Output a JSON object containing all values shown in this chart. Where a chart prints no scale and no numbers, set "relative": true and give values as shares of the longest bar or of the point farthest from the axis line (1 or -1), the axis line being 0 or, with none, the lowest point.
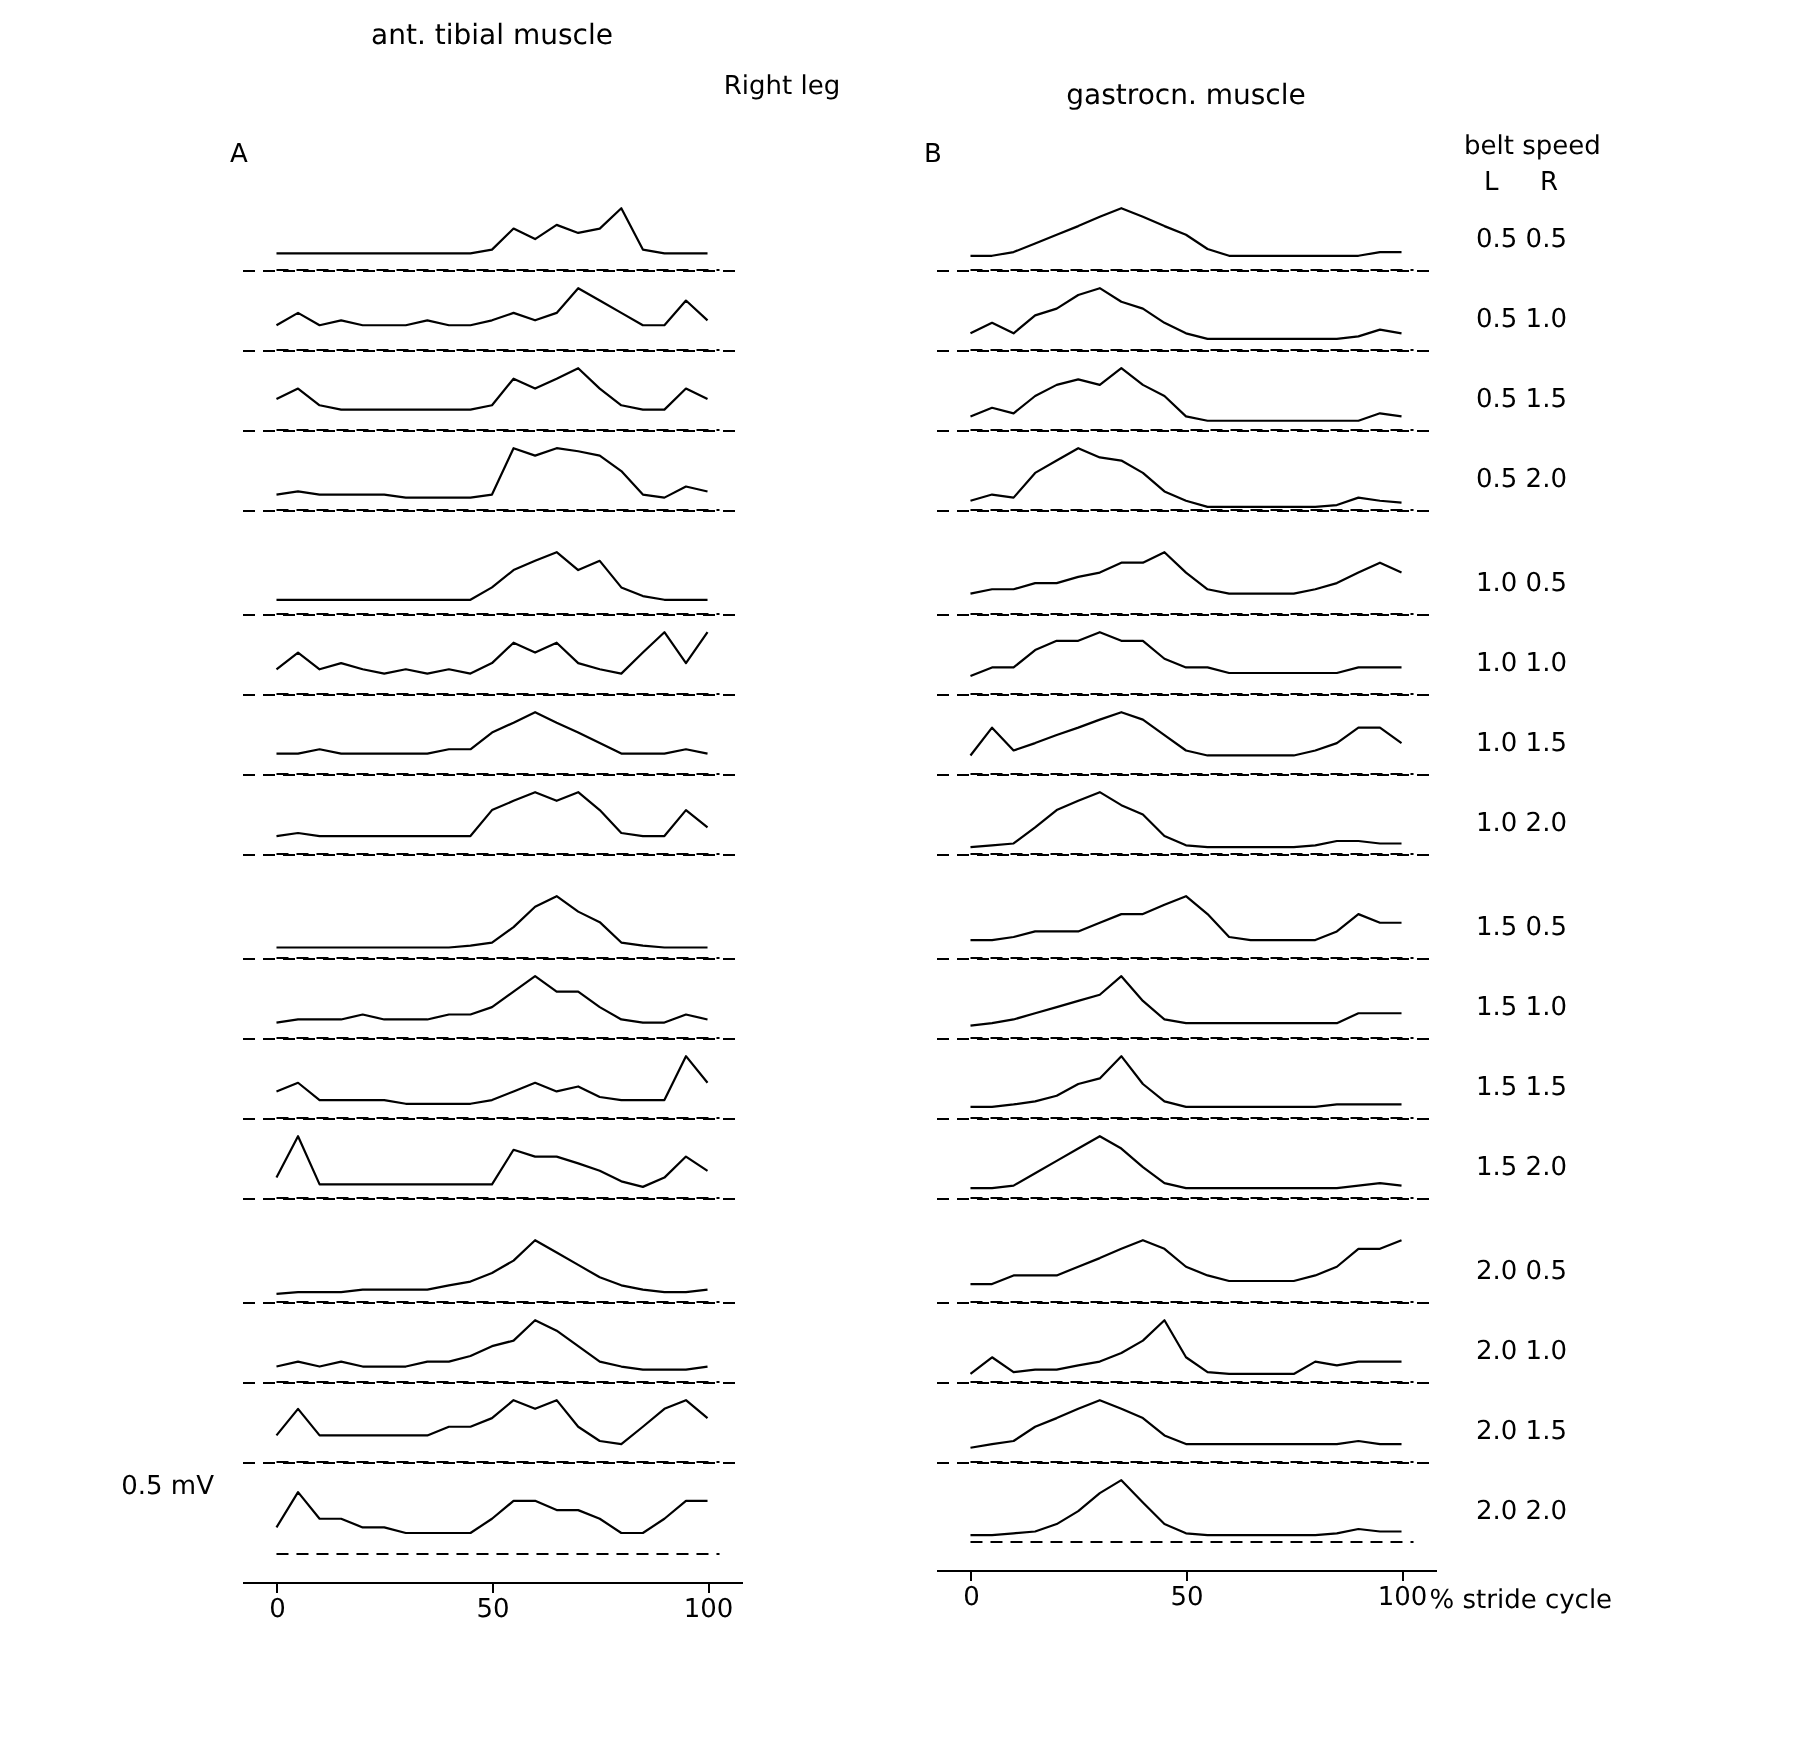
{
  "chart_data": [
    {
      "type": "line",
      "title": "ant. tibial muscle",
      "annotations": [
        "Right leg",
        "A"
      ],
      "relative": true,
      "tick_labels": false,
      "x": [
        0,
        5,
        10,
        15,
        20,
        25,
        30,
        35,
        40,
        45,
        50,
        55,
        60,
        65,
        70,
        75,
        80,
        85,
        90,
        95,
        100
      ],
      "xlim": [
        -8,
        108
      ],
      "xticks": [
        0,
        50,
        100
      ],
      "ref_lines": [
        {
          "axis": "y",
          "value": 0,
          "line_style": "dashed",
          "color": "#000000"
        }
      ],
      "series": [
        {
          "color": "#000000",
          "values": [
            0.27,
            0.27,
            0.27,
            0.27,
            0.27,
            0.27,
            0.27,
            0.27,
            0.27,
            0.27,
            0.33,
            0.67,
            0.5,
            0.73,
            0.6,
            0.67,
            1,
            0.33,
            0.27,
            0.27,
            0.27
          ]
        }
      ]
    },
    {
      "type": "line",
      "title": "gastrocn. muscle",
      "annotations": [
        "B",
        "L",
        "R"
      ],
      "legend_title": "belt speed",
      "relative": true,
      "tick_labels": false,
      "x": [
        0,
        5,
        10,
        15,
        20,
        25,
        30,
        35,
        40,
        45,
        50,
        55,
        60,
        65,
        70,
        75,
        80,
        85,
        90,
        95,
        100
      ],
      "xlim": [
        -8,
        108
      ],
      "xticks": [
        0,
        50,
        100
      ],
      "ref_lines": [
        {
          "axis": "y",
          "value": 0,
          "line_style": "dashed",
          "color": "#000000"
        }
      ],
      "series": [
        {
          "name": "0.5 0.5",
          "color": "#000000",
          "values": [
            0.23,
            0.23,
            0.29,
            0.43,
            0.57,
            0.71,
            0.86,
            1,
            0.86,
            0.71,
            0.57,
            0.34,
            0.23,
            0.23,
            0.23,
            0.23,
            0.23,
            0.23,
            0.23,
            0.29,
            0.29
          ]
        }
      ]
    },
    {
      "type": "line",
      "relative": true,
      "tick_labels": false,
      "x": [
        0,
        5,
        10,
        15,
        20,
        25,
        30,
        35,
        40,
        45,
        50,
        55,
        60,
        65,
        70,
        75,
        80,
        85,
        90,
        95,
        100
      ],
      "xlim": [
        -8,
        108
      ],
      "xticks": [
        0,
        50,
        100
      ],
      "ref_lines": [
        {
          "axis": "y",
          "value": 0,
          "line_style": "dashed",
          "color": "#000000"
        }
      ],
      "series": [
        {
          "color": "#000000",
          "values": [
            0.4,
            0.6,
            0.4,
            0.48,
            0.4,
            0.4,
            0.4,
            0.48,
            0.4,
            0.4,
            0.48,
            0.6,
            0.48,
            0.6,
            1,
            0.8,
            0.6,
            0.4,
            0.4,
            0.8,
            0.48
          ]
        }
      ]
    },
    {
      "type": "line",
      "relative": true,
      "tick_labels": false,
      "x": [
        0,
        5,
        10,
        15,
        20,
        25,
        30,
        35,
        40,
        45,
        50,
        55,
        60,
        65,
        70,
        75,
        80,
        85,
        90,
        95,
        100
      ],
      "xlim": [
        -8,
        108
      ],
      "xticks": [
        0,
        50,
        100
      ],
      "ref_lines": [
        {
          "axis": "y",
          "value": 0,
          "line_style": "dashed",
          "color": "#000000"
        }
      ],
      "series": [
        {
          "name": "0.5 1.0",
          "color": "#000000",
          "values": [
            0.27,
            0.44,
            0.27,
            0.56,
            0.67,
            0.89,
            1,
            0.78,
            0.67,
            0.44,
            0.27,
            0.18,
            0.18,
            0.18,
            0.18,
            0.18,
            0.18,
            0.18,
            0.22,
            0.33,
            0.27
          ]
        }
      ]
    },
    {
      "type": "line",
      "relative": true,
      "tick_labels": false,
      "x": [
        0,
        5,
        10,
        15,
        20,
        25,
        30,
        35,
        40,
        45,
        50,
        55,
        60,
        65,
        70,
        75,
        80,
        85,
        90,
        95,
        100
      ],
      "xlim": [
        -8,
        108
      ],
      "xticks": [
        0,
        50,
        100
      ],
      "ref_lines": [
        {
          "axis": "y",
          "value": 0,
          "line_style": "dashed",
          "color": "#000000"
        }
      ],
      "series": [
        {
          "color": "#000000",
          "values": [
            0.5,
            0.67,
            0.4,
            0.33,
            0.33,
            0.33,
            0.33,
            0.33,
            0.33,
            0.33,
            0.4,
            0.83,
            0.67,
            0.83,
            1,
            0.67,
            0.4,
            0.33,
            0.33,
            0.67,
            0.5
          ]
        }
      ]
    },
    {
      "type": "line",
      "relative": true,
      "tick_labels": false,
      "x": [
        0,
        5,
        10,
        15,
        20,
        25,
        30,
        35,
        40,
        45,
        50,
        55,
        60,
        65,
        70,
        75,
        80,
        85,
        90,
        95,
        100
      ],
      "xlim": [
        -8,
        108
      ],
      "xticks": [
        0,
        50,
        100
      ],
      "ref_lines": [
        {
          "axis": "y",
          "value": 0,
          "line_style": "dashed",
          "color": "#000000"
        }
      ],
      "series": [
        {
          "name": "0.5 1.5",
          "color": "#000000",
          "values": [
            0.22,
            0.36,
            0.27,
            0.55,
            0.73,
            0.82,
            0.73,
            1,
            0.73,
            0.55,
            0.22,
            0.15,
            0.15,
            0.15,
            0.15,
            0.15,
            0.15,
            0.15,
            0.15,
            0.27,
            0.22
          ]
        }
      ]
    },
    {
      "type": "line",
      "relative": true,
      "tick_labels": false,
      "x": [
        0,
        5,
        10,
        15,
        20,
        25,
        30,
        35,
        40,
        45,
        50,
        55,
        60,
        65,
        70,
        75,
        80,
        85,
        90,
        95,
        100
      ],
      "xlim": [
        -8,
        108
      ],
      "xticks": [
        0,
        50,
        100
      ],
      "ref_lines": [
        {
          "axis": "y",
          "value": 0,
          "line_style": "dashed",
          "color": "#000000"
        }
      ],
      "series": [
        {
          "color": "#000000",
          "values": [
            0.25,
            0.3,
            0.25,
            0.25,
            0.25,
            0.25,
            0.2,
            0.2,
            0.2,
            0.2,
            0.25,
            1,
            0.88,
            1,
            0.95,
            0.88,
            0.63,
            0.25,
            0.2,
            0.38,
            0.3
          ]
        }
      ]
    },
    {
      "type": "line",
      "relative": true,
      "tick_labels": false,
      "x": [
        0,
        5,
        10,
        15,
        20,
        25,
        30,
        35,
        40,
        45,
        50,
        55,
        60,
        65,
        70,
        75,
        80,
        85,
        90,
        95,
        100
      ],
      "xlim": [
        -8,
        108
      ],
      "xticks": [
        0,
        50,
        100
      ],
      "ref_lines": [
        {
          "axis": "y",
          "value": 0,
          "line_style": "dashed",
          "color": "#000000"
        }
      ],
      "series": [
        {
          "name": "0.5 2.0",
          "color": "#000000",
          "values": [
            0.15,
            0.25,
            0.2,
            0.6,
            0.8,
            1.0,
            0.85,
            0.8,
            0.6,
            0.3,
            0.15,
            0.05,
            0.05,
            0.05,
            0.05,
            0.05,
            0.05,
            0.08,
            0.2,
            0.15,
            0.12
          ]
        }
      ]
    },
    {
      "type": "line",
      "relative": true,
      "tick_labels": false,
      "x": [
        0,
        5,
        10,
        15,
        20,
        25,
        30,
        35,
        40,
        45,
        50,
        55,
        60,
        65,
        70,
        75,
        80,
        85,
        90,
        95,
        100
      ],
      "xlim": [
        -8,
        108
      ],
      "xticks": [
        0,
        50,
        100
      ],
      "ref_lines": [
        {
          "axis": "y",
          "value": 0,
          "line_style": "dashed",
          "color": "#000000"
        }
      ],
      "series": [
        {
          "color": "#000000",
          "values": [
            0.23,
            0.23,
            0.23,
            0.23,
            0.23,
            0.23,
            0.23,
            0.23,
            0.23,
            0.23,
            0.43,
            0.71,
            0.86,
            1,
            0.71,
            0.86,
            0.43,
            0.29,
            0.23,
            0.23,
            0.23
          ]
        }
      ]
    },
    {
      "type": "line",
      "relative": true,
      "tick_labels": false,
      "x": [
        0,
        5,
        10,
        15,
        20,
        25,
        30,
        35,
        40,
        45,
        50,
        55,
        60,
        65,
        70,
        75,
        80,
        85,
        90,
        95,
        100
      ],
      "xlim": [
        -8,
        108
      ],
      "xticks": [
        0,
        50,
        100
      ],
      "ref_lines": [
        {
          "axis": "y",
          "value": 0,
          "line_style": "dashed",
          "color": "#000000"
        }
      ],
      "series": [
        {
          "name": "1.0 0.5",
          "color": "#000000",
          "values": [
            0.33,
            0.4,
            0.4,
            0.5,
            0.5,
            0.6,
            0.67,
            0.83,
            0.83,
            1,
            0.67,
            0.4,
            0.33,
            0.33,
            0.33,
            0.33,
            0.4,
            0.5,
            0.67,
            0.83,
            0.67
          ]
        }
      ]
    },
    {
      "type": "line",
      "relative": true,
      "tick_labels": false,
      "x": [
        0,
        5,
        10,
        15,
        20,
        25,
        30,
        35,
        40,
        45,
        50,
        55,
        60,
        65,
        70,
        75,
        80,
        85,
        90,
        95,
        100
      ],
      "xlim": [
        -8,
        108
      ],
      "xticks": [
        0,
        50,
        100
      ],
      "ref_lines": [
        {
          "axis": "y",
          "value": 0,
          "line_style": "dashed",
          "color": "#000000"
        }
      ],
      "series": [
        {
          "color": "#000000",
          "values": [
            0.4,
            0.67,
            0.4,
            0.5,
            0.4,
            0.33,
            0.4,
            0.33,
            0.4,
            0.33,
            0.5,
            0.83,
            0.67,
            0.83,
            0.5,
            0.4,
            0.33,
            0.67,
            1,
            0.5,
            1
          ]
        }
      ]
    },
    {
      "type": "line",
      "relative": true,
      "tick_labels": false,
      "x": [
        0,
        5,
        10,
        15,
        20,
        25,
        30,
        35,
        40,
        45,
        50,
        55,
        60,
        65,
        70,
        75,
        80,
        85,
        90,
        95,
        100
      ],
      "xlim": [
        -8,
        108
      ],
      "xticks": [
        0,
        50,
        100
      ],
      "ref_lines": [
        {
          "axis": "y",
          "value": 0,
          "line_style": "dashed",
          "color": "#000000"
        }
      ],
      "series": [
        {
          "name": "1.0 1.0",
          "color": "#000000",
          "values": [
            0.29,
            0.43,
            0.43,
            0.71,
            0.86,
            0.86,
            1,
            0.86,
            0.86,
            0.57,
            0.43,
            0.43,
            0.34,
            0.34,
            0.34,
            0.34,
            0.34,
            0.34,
            0.43,
            0.43,
            0.43
          ]
        }
      ]
    },
    {
      "type": "line",
      "relative": true,
      "tick_labels": false,
      "x": [
        0,
        5,
        10,
        15,
        20,
        25,
        30,
        35,
        40,
        45,
        50,
        55,
        60,
        65,
        70,
        75,
        80,
        85,
        90,
        95,
        100
      ],
      "xlim": [
        -8,
        108
      ],
      "xticks": [
        0,
        50,
        100
      ],
      "ref_lines": [
        {
          "axis": "y",
          "value": 0,
          "line_style": "dashed",
          "color": "#000000"
        }
      ],
      "series": [
        {
          "color": "#000000",
          "values": [
            0.33,
            0.33,
            0.4,
            0.33,
            0.33,
            0.33,
            0.33,
            0.33,
            0.4,
            0.4,
            0.67,
            0.83,
            1,
            0.83,
            0.67,
            0.5,
            0.33,
            0.33,
            0.33,
            0.4,
            0.33
          ]
        }
      ]
    },
    {
      "type": "line",
      "relative": true,
      "tick_labels": false,
      "x": [
        0,
        5,
        10,
        15,
        20,
        25,
        30,
        35,
        40,
        45,
        50,
        55,
        60,
        65,
        70,
        75,
        80,
        85,
        90,
        95,
        100
      ],
      "xlim": [
        -8,
        108
      ],
      "xticks": [
        0,
        50,
        100
      ],
      "ref_lines": [
        {
          "axis": "y",
          "value": 0,
          "line_style": "dashed",
          "color": "#000000"
        }
      ],
      "series": [
        {
          "name": "1.0 1.5",
          "color": "#000000",
          "values": [
            0.3,
            0.75,
            0.38,
            0.5,
            0.63,
            0.75,
            0.88,
            1,
            0.88,
            0.63,
            0.38,
            0.3,
            0.3,
            0.3,
            0.3,
            0.3,
            0.38,
            0.5,
            0.75,
            0.75,
            0.5
          ]
        }
      ]
    },
    {
      "type": "line",
      "relative": true,
      "tick_labels": false,
      "x": [
        0,
        5,
        10,
        15,
        20,
        25,
        30,
        35,
        40,
        45,
        50,
        55,
        60,
        65,
        70,
        75,
        80,
        85,
        90,
        95,
        100
      ],
      "xlim": [
        -8,
        108
      ],
      "xticks": [
        0,
        50,
        100
      ],
      "ref_lines": [
        {
          "axis": "y",
          "value": 0,
          "line_style": "dashed",
          "color": "#000000"
        }
      ],
      "series": [
        {
          "color": "#000000",
          "values": [
            0.29,
            0.34,
            0.29,
            0.29,
            0.29,
            0.29,
            0.29,
            0.29,
            0.29,
            0.29,
            0.71,
            0.86,
            1,
            0.86,
            1,
            0.71,
            0.34,
            0.29,
            0.29,
            0.71,
            0.43
          ]
        }
      ]
    },
    {
      "type": "line",
      "relative": true,
      "tick_labels": false,
      "x": [
        0,
        5,
        10,
        15,
        20,
        25,
        30,
        35,
        40,
        45,
        50,
        55,
        60,
        65,
        70,
        75,
        80,
        85,
        90,
        95,
        100
      ],
      "xlim": [
        -8,
        108
      ],
      "xticks": [
        0,
        50,
        100
      ],
      "ref_lines": [
        {
          "axis": "y",
          "value": 0,
          "line_style": "dashed",
          "color": "#000000"
        }
      ],
      "series": [
        {
          "name": "1.0 2.0",
          "color": "#000000",
          "values": [
            0.11,
            0.14,
            0.17,
            0.43,
            0.71,
            0.86,
            1,
            0.79,
            0.64,
            0.29,
            0.14,
            0.11,
            0.11,
            0.11,
            0.11,
            0.11,
            0.14,
            0.21,
            0.21,
            0.17,
            0.17
          ]
        }
      ]
    },
    {
      "type": "line",
      "relative": true,
      "tick_labels": false,
      "x": [
        0,
        5,
        10,
        15,
        20,
        25,
        30,
        35,
        40,
        45,
        50,
        55,
        60,
        65,
        70,
        75,
        80,
        85,
        90,
        95,
        100
      ],
      "xlim": [
        -8,
        108
      ],
      "xticks": [
        0,
        50,
        100
      ],
      "ref_lines": [
        {
          "axis": "y",
          "value": 0,
          "line_style": "dashed",
          "color": "#000000"
        }
      ],
      "series": [
        {
          "color": "#000000",
          "values": [
            0.17,
            0.17,
            0.17,
            0.17,
            0.17,
            0.17,
            0.17,
            0.17,
            0.17,
            0.2,
            0.25,
            0.5,
            0.83,
            1,
            0.75,
            0.58,
            0.25,
            0.2,
            0.17,
            0.17,
            0.17
          ]
        }
      ]
    },
    {
      "type": "line",
      "relative": true,
      "tick_labels": false,
      "x": [
        0,
        5,
        10,
        15,
        20,
        25,
        30,
        35,
        40,
        45,
        50,
        55,
        60,
        65,
        70,
        75,
        80,
        85,
        90,
        95,
        100
      ],
      "xlim": [
        -8,
        108
      ],
      "xticks": [
        0,
        50,
        100
      ],
      "ref_lines": [
        {
          "axis": "y",
          "value": 0,
          "line_style": "dashed",
          "color": "#000000"
        }
      ],
      "series": [
        {
          "name": "1.5 0.5",
          "color": "#000000",
          "values": [
            0.29,
            0.29,
            0.34,
            0.43,
            0.43,
            0.43,
            0.57,
            0.71,
            0.71,
            0.86,
            1,
            0.71,
            0.34,
            0.29,
            0.29,
            0.29,
            0.29,
            0.43,
            0.71,
            0.57,
            0.57
          ]
        }
      ]
    },
    {
      "type": "line",
      "relative": true,
      "tick_labels": false,
      "x": [
        0,
        5,
        10,
        15,
        20,
        25,
        30,
        35,
        40,
        45,
        50,
        55,
        60,
        65,
        70,
        75,
        80,
        85,
        90,
        95,
        100
      ],
      "xlim": [
        -8,
        108
      ],
      "xticks": [
        0,
        50,
        100
      ],
      "ref_lines": [
        {
          "axis": "y",
          "value": 0,
          "line_style": "dashed",
          "color": "#000000"
        }
      ],
      "series": [
        {
          "color": "#000000",
          "values": [
            0.25,
            0.3,
            0.3,
            0.3,
            0.38,
            0.3,
            0.3,
            0.3,
            0.38,
            0.38,
            0.5,
            0.75,
            1,
            0.75,
            0.75,
            0.5,
            0.3,
            0.25,
            0.25,
            0.38,
            0.3
          ]
        }
      ]
    },
    {
      "type": "line",
      "relative": true,
      "tick_labels": false,
      "x": [
        0,
        5,
        10,
        15,
        20,
        25,
        30,
        35,
        40,
        45,
        50,
        55,
        60,
        65,
        70,
        75,
        80,
        85,
        90,
        95,
        100
      ],
      "xlim": [
        -8,
        108
      ],
      "xticks": [
        0,
        50,
        100
      ],
      "ref_lines": [
        {
          "axis": "y",
          "value": 0,
          "line_style": "dashed",
          "color": "#000000"
        }
      ],
      "series": [
        {
          "name": "1.5 1.0",
          "color": "#000000",
          "values": [
            0.2,
            0.24,
            0.3,
            0.4,
            0.5,
            0.6,
            0.7,
            1,
            0.6,
            0.3,
            0.24,
            0.24,
            0.24,
            0.24,
            0.24,
            0.24,
            0.24,
            0.24,
            0.4,
            0.4,
            0.4
          ]
        }
      ]
    },
    {
      "type": "line",
      "relative": true,
      "tick_labels": false,
      "x": [
        0,
        5,
        10,
        15,
        20,
        25,
        30,
        35,
        40,
        45,
        50,
        55,
        60,
        65,
        70,
        75,
        80,
        85,
        90,
        95,
        100
      ],
      "xlim": [
        -8,
        108
      ],
      "xticks": [
        0,
        50,
        100
      ],
      "ref_lines": [
        {
          "axis": "y",
          "value": 0,
          "line_style": "dashed",
          "color": "#000000"
        }
      ],
      "series": [
        {
          "color": "#000000",
          "values": [
            0.43,
            0.57,
            0.29,
            0.29,
            0.29,
            0.29,
            0.23,
            0.23,
            0.23,
            0.23,
            0.29,
            0.43,
            0.57,
            0.43,
            0.51,
            0.34,
            0.29,
            0.29,
            0.29,
            1,
            0.57
          ]
        }
      ]
    },
    {
      "type": "line",
      "relative": true,
      "tick_labels": false,
      "x": [
        0,
        5,
        10,
        15,
        20,
        25,
        30,
        35,
        40,
        45,
        50,
        55,
        60,
        65,
        70,
        75,
        80,
        85,
        90,
        95,
        100
      ],
      "xlim": [
        -8,
        108
      ],
      "xticks": [
        0,
        50,
        100
      ],
      "ref_lines": [
        {
          "axis": "y",
          "value": 0,
          "line_style": "dashed",
          "color": "#000000"
        }
      ],
      "series": [
        {
          "name": "1.5 1.5",
          "color": "#000000",
          "values": [
            0.18,
            0.18,
            0.22,
            0.27,
            0.36,
            0.55,
            0.64,
            1,
            0.55,
            0.27,
            0.18,
            0.18,
            0.18,
            0.18,
            0.18,
            0.18,
            0.18,
            0.22,
            0.22,
            0.22,
            0.22
          ]
        }
      ]
    },
    {
      "type": "line",
      "relative": true,
      "tick_labels": false,
      "x": [
        0,
        5,
        10,
        15,
        20,
        25,
        30,
        35,
        40,
        45,
        50,
        55,
        60,
        65,
        70,
        75,
        80,
        85,
        90,
        95,
        100
      ],
      "xlim": [
        -8,
        108
      ],
      "xticks": [
        0,
        50,
        100
      ],
      "ref_lines": [
        {
          "axis": "y",
          "value": 0,
          "line_style": "dashed",
          "color": "#000000"
        }
      ],
      "series": [
        {
          "color": "#000000",
          "values": [
            0.33,
            1,
            0.22,
            0.22,
            0.22,
            0.22,
            0.22,
            0.22,
            0.22,
            0.22,
            0.22,
            0.78,
            0.67,
            0.67,
            0.56,
            0.44,
            0.27,
            0.18,
            0.33,
            0.67,
            0.44
          ]
        }
      ]
    },
    {
      "type": "line",
      "relative": true,
      "tick_labels": false,
      "x": [
        0,
        5,
        10,
        15,
        20,
        25,
        30,
        35,
        40,
        45,
        50,
        55,
        60,
        65,
        70,
        75,
        80,
        85,
        90,
        95,
        100
      ],
      "xlim": [
        -8,
        108
      ],
      "xticks": [
        0,
        50,
        100
      ],
      "ref_lines": [
        {
          "axis": "y",
          "value": 0,
          "line_style": "dashed",
          "color": "#000000"
        }
      ],
      "series": [
        {
          "name": "1.5 2.0",
          "color": "#000000",
          "values": [
            0.16,
            0.16,
            0.2,
            0.4,
            0.6,
            0.8,
            1,
            0.8,
            0.5,
            0.24,
            0.16,
            0.16,
            0.16,
            0.16,
            0.16,
            0.16,
            0.16,
            0.16,
            0.2,
            0.24,
            0.2
          ]
        }
      ]
    },
    {
      "type": "line",
      "relative": true,
      "tick_labels": false,
      "x": [
        0,
        5,
        10,
        15,
        20,
        25,
        30,
        35,
        40,
        45,
        50,
        55,
        60,
        65,
        70,
        75,
        80,
        85,
        90,
        95,
        100
      ],
      "xlim": [
        -8,
        108
      ],
      "xticks": [
        0,
        50,
        100
      ],
      "ref_lines": [
        {
          "axis": "y",
          "value": 0,
          "line_style": "dashed",
          "color": "#000000"
        }
      ],
      "series": [
        {
          "color": "#000000",
          "values": [
            0.13,
            0.16,
            0.16,
            0.16,
            0.2,
            0.2,
            0.2,
            0.2,
            0.27,
            0.33,
            0.47,
            0.67,
            1,
            0.8,
            0.6,
            0.4,
            0.27,
            0.2,
            0.16,
            0.16,
            0.2
          ]
        }
      ]
    },
    {
      "type": "line",
      "relative": true,
      "tick_labels": false,
      "x": [
        0,
        5,
        10,
        15,
        20,
        25,
        30,
        35,
        40,
        45,
        50,
        55,
        60,
        65,
        70,
        75,
        80,
        85,
        90,
        95,
        100
      ],
      "xlim": [
        -8,
        108
      ],
      "xticks": [
        0,
        50,
        100
      ],
      "ref_lines": [
        {
          "axis": "y",
          "value": 0,
          "line_style": "dashed",
          "color": "#000000"
        }
      ],
      "series": [
        {
          "name": "2.0 0.5",
          "color": "#000000",
          "values": [
            0.29,
            0.29,
            0.43,
            0.43,
            0.43,
            0.57,
            0.71,
            0.86,
            1,
            0.86,
            0.57,
            0.43,
            0.34,
            0.34,
            0.34,
            0.34,
            0.43,
            0.57,
            0.86,
            0.86,
            1
          ]
        }
      ]
    },
    {
      "type": "line",
      "relative": true,
      "tick_labels": false,
      "x": [
        0,
        5,
        10,
        15,
        20,
        25,
        30,
        35,
        40,
        45,
        50,
        55,
        60,
        65,
        70,
        75,
        80,
        85,
        90,
        95,
        100
      ],
      "xlim": [
        -8,
        108
      ],
      "xticks": [
        0,
        50,
        100
      ],
      "ref_lines": [
        {
          "axis": "y",
          "value": 0,
          "line_style": "dashed",
          "color": "#000000"
        }
      ],
      "series": [
        {
          "color": "#000000",
          "values": [
            0.25,
            0.33,
            0.25,
            0.33,
            0.25,
            0.25,
            0.25,
            0.33,
            0.33,
            0.42,
            0.58,
            0.67,
            1,
            0.83,
            0.58,
            0.33,
            0.25,
            0.2,
            0.2,
            0.2,
            0.25
          ]
        }
      ]
    },
    {
      "type": "line",
      "relative": true,
      "tick_labels": false,
      "x": [
        0,
        5,
        10,
        15,
        20,
        25,
        30,
        35,
        40,
        45,
        50,
        55,
        60,
        65,
        70,
        75,
        80,
        85,
        90,
        95,
        100
      ],
      "xlim": [
        -8,
        108
      ],
      "xticks": [
        0,
        50,
        100
      ],
      "ref_lines": [
        {
          "axis": "y",
          "value": 0,
          "line_style": "dashed",
          "color": "#000000"
        }
      ],
      "series": [
        {
          "name": "2.0 1.0",
          "color": "#000000",
          "values": [
            0.13,
            0.4,
            0.16,
            0.2,
            0.2,
            0.27,
            0.33,
            0.47,
            0.67,
            1,
            0.4,
            0.16,
            0.13,
            0.13,
            0.13,
            0.13,
            0.33,
            0.27,
            0.33,
            0.33,
            0.33
          ]
        }
      ]
    },
    {
      "type": "line",
      "relative": true,
      "tick_labels": false,
      "x": [
        0,
        5,
        10,
        15,
        20,
        25,
        30,
        35,
        40,
        45,
        50,
        55,
        60,
        65,
        70,
        75,
        80,
        85,
        90,
        95,
        100
      ],
      "xlim": [
        -8,
        108
      ],
      "xticks": [
        0,
        50,
        100
      ],
      "ref_lines": [
        {
          "axis": "y",
          "value": 0,
          "line_style": "dashed",
          "color": "#000000"
        }
      ],
      "series": [
        {
          "color": "#000000",
          "values": [
            0.43,
            0.86,
            0.43,
            0.43,
            0.43,
            0.43,
            0.43,
            0.43,
            0.57,
            0.57,
            0.71,
            1,
            0.86,
            1,
            0.57,
            0.34,
            0.29,
            0.57,
            0.86,
            1,
            0.71
          ]
        }
      ]
    },
    {
      "type": "line",
      "relative": true,
      "tick_labels": false,
      "x": [
        0,
        5,
        10,
        15,
        20,
        25,
        30,
        35,
        40,
        45,
        50,
        55,
        60,
        65,
        70,
        75,
        80,
        85,
        90,
        95,
        100
      ],
      "xlim": [
        -8,
        108
      ],
      "xticks": [
        0,
        50,
        100
      ],
      "ref_lines": [
        {
          "axis": "y",
          "value": 0,
          "line_style": "dashed",
          "color": "#000000"
        }
      ],
      "series": [
        {
          "name": "2.0 1.5",
          "color": "#000000",
          "values": [
            0.23,
            0.29,
            0.34,
            0.57,
            0.71,
            0.86,
            1,
            0.86,
            0.71,
            0.43,
            0.29,
            0.29,
            0.29,
            0.29,
            0.29,
            0.29,
            0.29,
            0.29,
            0.34,
            0.29,
            0.29
          ]
        }
      ]
    },
    {
      "type": "line",
      "annotations": [
        "0.5 mV"
      ],
      "relative": true,
      "tick_labels": "x",
      "x": [
        0,
        5,
        10,
        15,
        20,
        25,
        30,
        35,
        40,
        45,
        50,
        55,
        60,
        65,
        70,
        75,
        80,
        85,
        90,
        95,
        100
      ],
      "xlim": [
        -8,
        108
      ],
      "xticks": [
        0,
        50,
        100
      ],
      "ref_lines": [
        {
          "axis": "y",
          "value": 0,
          "line_style": "dashed",
          "color": "#000000"
        }
      ],
      "series": [
        {
          "color": "#000000",
          "values": [
            0.43,
            1,
            0.57,
            0.57,
            0.43,
            0.43,
            0.34,
            0.34,
            0.34,
            0.34,
            0.57,
            0.86,
            0.86,
            0.71,
            0.71,
            0.57,
            0.34,
            0.34,
            0.57,
            0.86,
            0.86
          ]
        }
      ]
    },
    {
      "type": "line",
      "xlabel": "% stride cycle",
      "relative": true,
      "tick_labels": "x",
      "x": [
        0,
        5,
        10,
        15,
        20,
        25,
        30,
        35,
        40,
        45,
        50,
        55,
        60,
        65,
        70,
        75,
        80,
        85,
        90,
        95,
        100
      ],
      "xlim": [
        -8,
        108
      ],
      "xticks": [
        0,
        50,
        100
      ],
      "ref_lines": [
        {
          "axis": "y",
          "value": 0,
          "line_style": "dashed",
          "color": "#000000"
        }
      ],
      "series": [
        {
          "name": "2.0 2.0",
          "color": "#000000",
          "values": [
            0.11,
            0.11,
            0.14,
            0.17,
            0.29,
            0.5,
            0.79,
            1,
            0.64,
            0.29,
            0.14,
            0.11,
            0.11,
            0.11,
            0.11,
            0.11,
            0.11,
            0.14,
            0.21,
            0.17,
            0.17
          ]
        }
      ]
    }
  ]
}
